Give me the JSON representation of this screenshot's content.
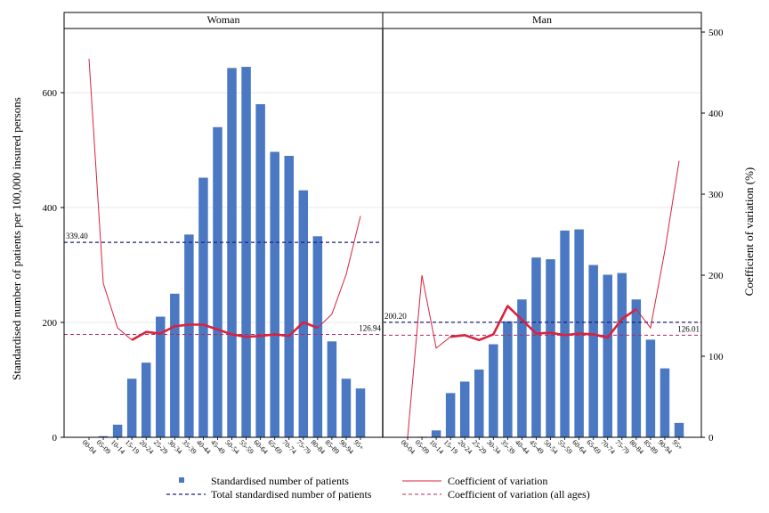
{
  "chart_data": {
    "type": "bar",
    "categories": [
      "00-04",
      "05-09",
      "10-14",
      "15-19",
      "20-24",
      "25-29",
      "30-34",
      "35-39",
      "40-44",
      "45-49",
      "50-54",
      "55-59",
      "60-64",
      "65-69",
      "70-74",
      "75-79",
      "80-84",
      "85-89",
      "90-94",
      "95+"
    ],
    "panels": [
      {
        "name": "Woman",
        "patients": [
          0,
          2,
          22,
          102,
          130,
          210,
          250,
          353,
          452,
          540,
          643,
          645,
          580,
          497,
          490,
          430,
          350,
          167,
          102,
          85
        ],
        "cv": [
          467,
          190,
          135,
          120,
          130,
          128,
          137,
          139,
          139,
          133,
          127,
          124,
          125,
          127,
          125,
          142,
          135,
          152,
          201,
          273
        ],
        "cv_bold_range": [
          3,
          16
        ],
        "total_patients": 339.4,
        "total_patients_label": "339.40",
        "cv_all_ages": 126.94,
        "cv_all_ages_label": "126.94"
      },
      {
        "name": "Man",
        "patients": [
          0,
          1,
          12,
          77,
          97,
          118,
          162,
          202,
          240,
          313,
          310,
          360,
          362,
          300,
          283,
          286,
          240,
          170,
          120,
          25
        ],
        "cv": [
          0,
          200,
          110,
          124,
          126,
          120,
          127,
          162,
          145,
          128,
          129,
          126,
          128,
          127,
          123,
          146,
          158,
          135,
          230,
          341
        ],
        "cv_bold_range": [
          3,
          16
        ],
        "total_patients": 200.2,
        "total_patients_label": "200.20",
        "cv_all_ages": 126.01,
        "cv_all_ages_label": "126.01"
      }
    ],
    "ylabel": "Standardised number of patients per 100,000 insured persons",
    "y2label": "Coefficient of variation (%)",
    "ylim": [
      0,
      700
    ],
    "y2lim": [
      0,
      500
    ],
    "yticks": [
      0,
      200,
      400,
      600
    ],
    "y2ticks": [
      0,
      100,
      200,
      300,
      400,
      500
    ],
    "legend": {
      "position": "bottom",
      "items": [
        {
          "label": "Standardised number of patients",
          "symbol": "square"
        },
        {
          "label": "Coefficient of variation",
          "symbol": "line"
        },
        {
          "label": "Total standardised number of patients",
          "symbol": "dashed-line"
        },
        {
          "label": "Coefficient of variation (all ages)",
          "symbol": "dashed-line"
        }
      ]
    },
    "colors": {
      "bar": "#4a78c2",
      "cv_line": "#d8223f",
      "total_line": "#1c1f82",
      "cv_all_line": "#b8265f",
      "grid": "#e8e8e8"
    },
    "grid": true
  }
}
